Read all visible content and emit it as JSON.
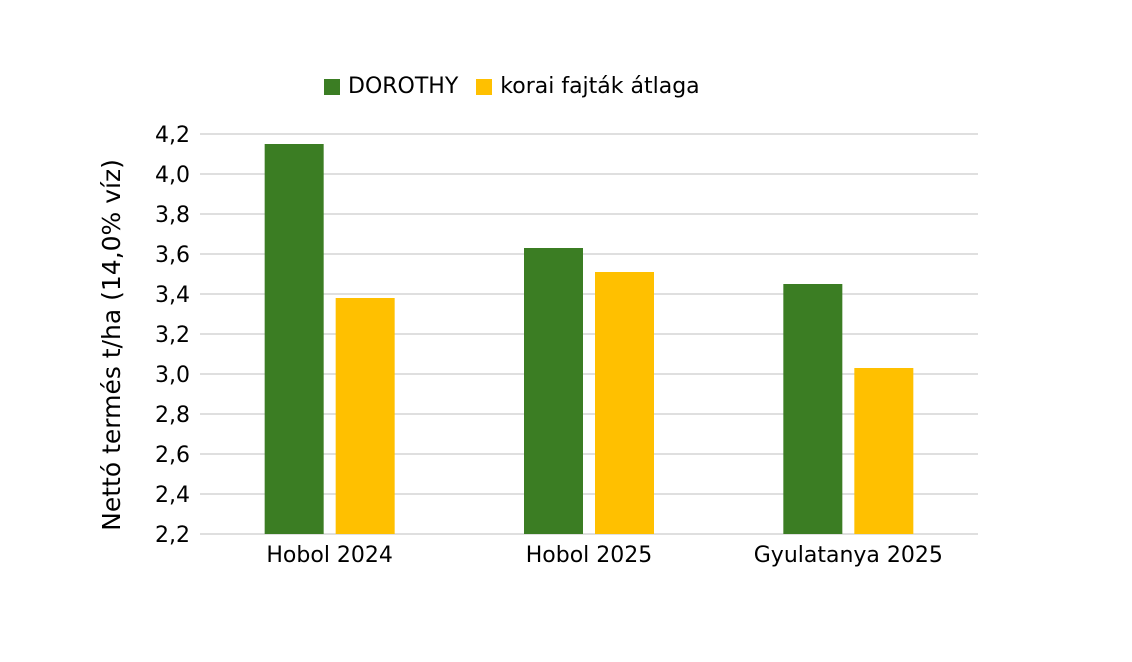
{
  "chart_data": {
    "type": "bar",
    "title": "",
    "ylabel": "Nettó termés t/ha (14,0% víz)",
    "xlabel": "",
    "categories": [
      "Hobol 2024",
      "Hobol 2025",
      "Gyulatanya 2025"
    ],
    "series": [
      {
        "name": "DOROTHY",
        "values": [
          4.15,
          3.63,
          3.45
        ],
        "color": "#3b7d23"
      },
      {
        "name": "korai fajták átlaga",
        "values": [
          3.38,
          3.51,
          3.03
        ],
        "color": "#ffc000"
      }
    ],
    "ylim": [
      2.2,
      4.2
    ],
    "yticks": [
      "4,2",
      "4,0",
      "3,8",
      "3,6",
      "3,4",
      "3,2",
      "3,0",
      "2,8",
      "2,6",
      "2,4",
      "2,2"
    ],
    "grid": true,
    "legend_position": "top"
  }
}
